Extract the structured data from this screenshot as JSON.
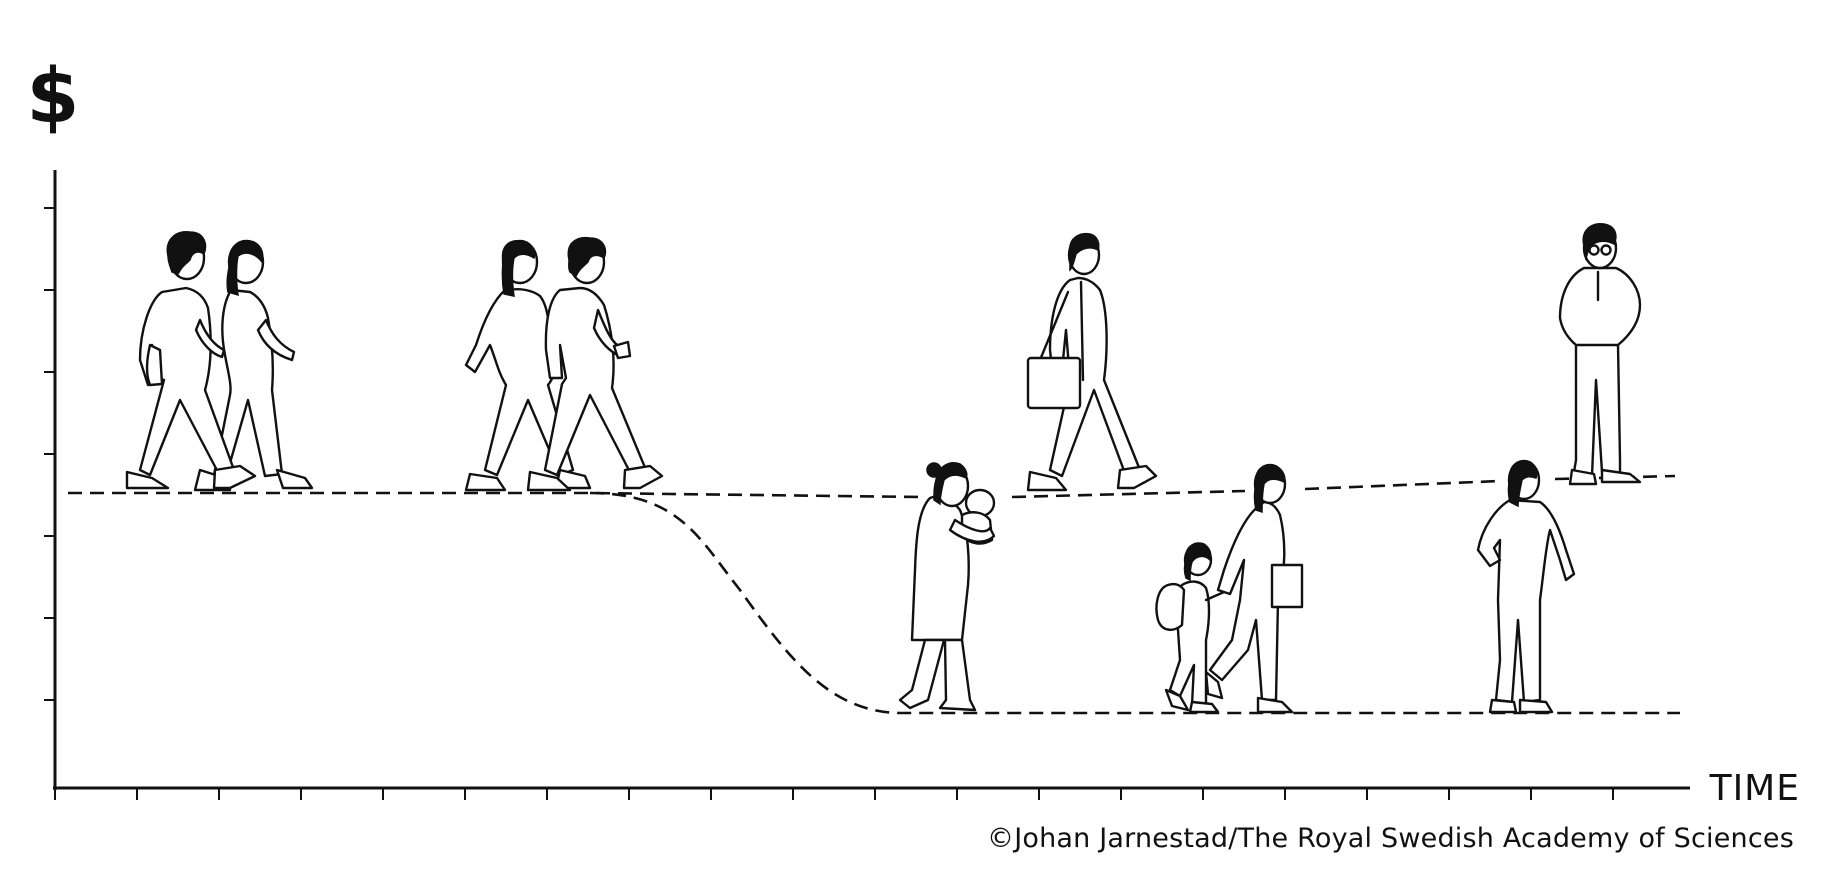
{
  "y_axis_label": "$",
  "x_axis_label": "TIME",
  "credit": "©Johan Jarnestad/The Royal Swedish Academy of Sciences",
  "colors": {
    "ink": "#111111",
    "background": "#ffffff"
  },
  "figures": [
    {
      "name": "couple-walking"
    },
    {
      "name": "pregnant-couple"
    },
    {
      "name": "mother-with-baby"
    },
    {
      "name": "father-with-briefcase"
    },
    {
      "name": "mother-and-child"
    },
    {
      "name": "father-standing"
    },
    {
      "name": "mother-standing"
    }
  ],
  "paths": [
    {
      "name": "father-income"
    },
    {
      "name": "mother-income"
    }
  ]
}
